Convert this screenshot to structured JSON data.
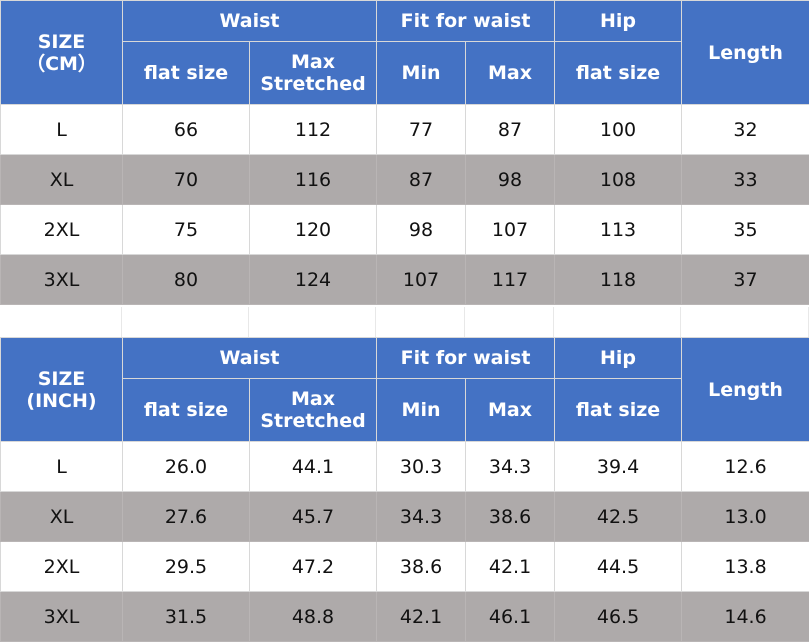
{
  "tables": [
    {
      "size_label": "SIZE\n（CM）",
      "groups": {
        "waist": "Waist",
        "fit_for_waist": "Fit for waist",
        "hip": "Hip",
        "length": "Length"
      },
      "subs": {
        "waist_flat": "flat size",
        "waist_max": "Max\nStretched",
        "fit_min": "Min",
        "fit_max": "Max",
        "hip_flat": "flat size"
      },
      "rows": [
        [
          "L",
          "66",
          "112",
          "77",
          "87",
          "100",
          "32"
        ],
        [
          "XL",
          "70",
          "116",
          "87",
          "98",
          "108",
          "33"
        ],
        [
          "2XL",
          "75",
          "120",
          "98",
          "107",
          "113",
          "35"
        ],
        [
          "3XL",
          "80",
          "124",
          "107",
          "117",
          "118",
          "37"
        ]
      ]
    },
    {
      "size_label": "SIZE\n(INCH)",
      "groups": {
        "waist": "Waist",
        "fit_for_waist": "Fit for waist",
        "hip": "Hip",
        "length": "Length"
      },
      "subs": {
        "waist_flat": "flat size",
        "waist_max": "Max\nStretched",
        "fit_min": "Min",
        "fit_max": "Max",
        "hip_flat": "flat size"
      },
      "rows": [
        [
          "L",
          "26.0",
          "44.1",
          "30.3",
          "34.3",
          "39.4",
          "12.6"
        ],
        [
          "XL",
          "27.6",
          "45.7",
          "34.3",
          "38.6",
          "42.5",
          "13.0"
        ],
        [
          "2XL",
          "29.5",
          "47.2",
          "38.6",
          "42.1",
          "44.5",
          "13.8"
        ],
        [
          "3XL",
          "31.5",
          "48.8",
          "42.1",
          "46.1",
          "46.5",
          "14.6"
        ]
      ]
    }
  ],
  "colors": {
    "header_bg": "#4472c4",
    "header_text": "#ffffff",
    "row_alt_bg": "#aeaaaa",
    "row_bg": "#ffffff"
  }
}
